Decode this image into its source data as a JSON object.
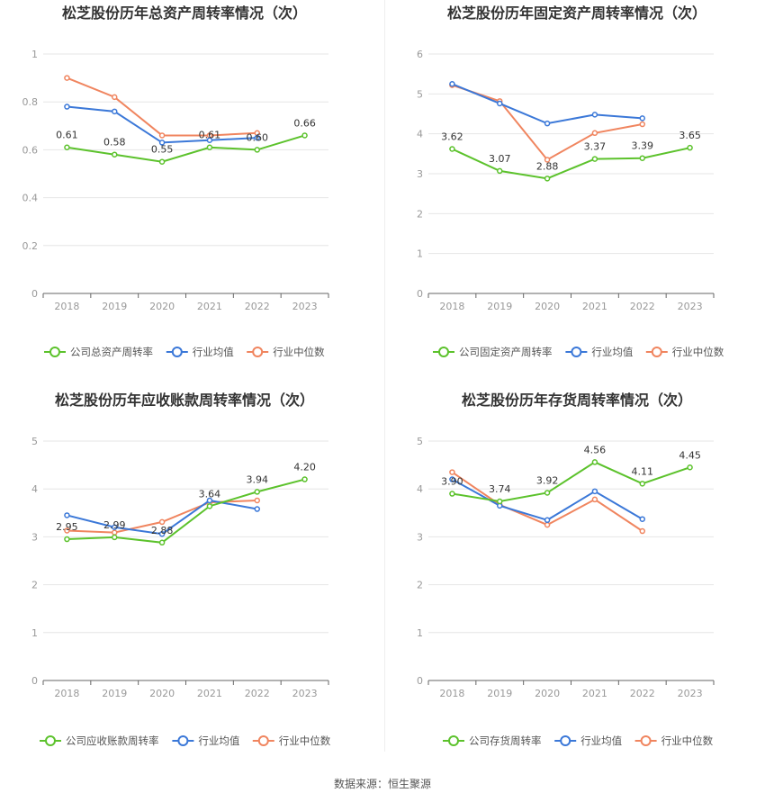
{
  "source_text": "数据来源：恒生聚源",
  "colors": {
    "company": "#5cc22c",
    "avg": "#3b78d8",
    "median": "#f0855f",
    "grid": "#e6e6e6",
    "axis": "#999999"
  },
  "chart_data": [
    {
      "type": "line",
      "title": "松芝股份历年总资产周转率情况（次）",
      "categories": [
        "2018",
        "2019",
        "2020",
        "2021",
        "2022",
        "2023"
      ],
      "ylim": [
        0,
        1
      ],
      "yticks": [
        "0",
        "0.2",
        "0.4",
        "0.6",
        "0.8",
        "1"
      ],
      "series": [
        {
          "name": "公司总资产周转率",
          "values": [
            0.61,
            0.58,
            0.55,
            0.61,
            0.6,
            0.66
          ],
          "labels": [
            "0.61",
            "0.58",
            "0.55",
            "0.61",
            "0.60",
            "0.66"
          ]
        },
        {
          "name": "行业均值",
          "values": [
            0.78,
            0.76,
            0.63,
            0.64,
            0.65,
            null
          ]
        },
        {
          "name": "行业中位数",
          "values": [
            0.9,
            0.82,
            0.66,
            0.66,
            0.67,
            null
          ]
        }
      ]
    },
    {
      "type": "line",
      "title": "松芝股份历年固定资产周转率情况（次）",
      "categories": [
        "2018",
        "2019",
        "2020",
        "2021",
        "2022",
        "2023"
      ],
      "ylim": [
        0,
        6
      ],
      "yticks": [
        "0",
        "1",
        "2",
        "3",
        "4",
        "5",
        "6"
      ],
      "series": [
        {
          "name": "公司固定资产周转率",
          "values": [
            3.62,
            3.07,
            2.88,
            3.37,
            3.39,
            3.65
          ],
          "labels": [
            "3.62",
            "3.07",
            "2.88",
            "3.37",
            "3.39",
            "3.65"
          ]
        },
        {
          "name": "行业均值",
          "values": [
            5.25,
            4.76,
            4.26,
            4.48,
            4.39,
            null
          ]
        },
        {
          "name": "行业中位数",
          "values": [
            5.22,
            4.82,
            3.35,
            4.02,
            4.24,
            null
          ]
        }
      ]
    },
    {
      "type": "line",
      "title": "松芝股份历年应收账款周转率情况（次）",
      "categories": [
        "2018",
        "2019",
        "2020",
        "2021",
        "2022",
        "2023"
      ],
      "ylim": [
        0,
        5
      ],
      "yticks": [
        "0",
        "1",
        "2",
        "3",
        "4",
        "5"
      ],
      "series": [
        {
          "name": "公司应收账款周转率",
          "values": [
            2.95,
            2.99,
            2.88,
            3.64,
            3.94,
            4.2
          ],
          "labels": [
            "2.95",
            "2.99",
            "2.88",
            "3.64",
            "3.94",
            "4.20"
          ]
        },
        {
          "name": "行业均值",
          "values": [
            3.45,
            3.2,
            3.06,
            3.76,
            3.58,
            null
          ]
        },
        {
          "name": "行业中位数",
          "values": [
            3.13,
            3.09,
            3.31,
            3.72,
            3.76,
            null
          ]
        }
      ]
    },
    {
      "type": "line",
      "title": "松芝股份历年存货周转率情况（次）",
      "categories": [
        "2018",
        "2019",
        "2020",
        "2021",
        "2022",
        "2023"
      ],
      "ylim": [
        0,
        5
      ],
      "yticks": [
        "0",
        "1",
        "2",
        "3",
        "4",
        "5"
      ],
      "series": [
        {
          "name": "公司存货周转率",
          "values": [
            3.9,
            3.74,
            3.92,
            4.56,
            4.11,
            4.45
          ],
          "labels": [
            "3.90",
            "3.74",
            "3.92",
            "4.56",
            "4.11",
            "4.45"
          ]
        },
        {
          "name": "行业均值",
          "values": [
            4.2,
            3.65,
            3.35,
            3.95,
            3.37,
            null
          ]
        },
        {
          "name": "行业中位数",
          "values": [
            4.35,
            3.67,
            3.25,
            3.78,
            3.12,
            null
          ]
        }
      ]
    }
  ]
}
